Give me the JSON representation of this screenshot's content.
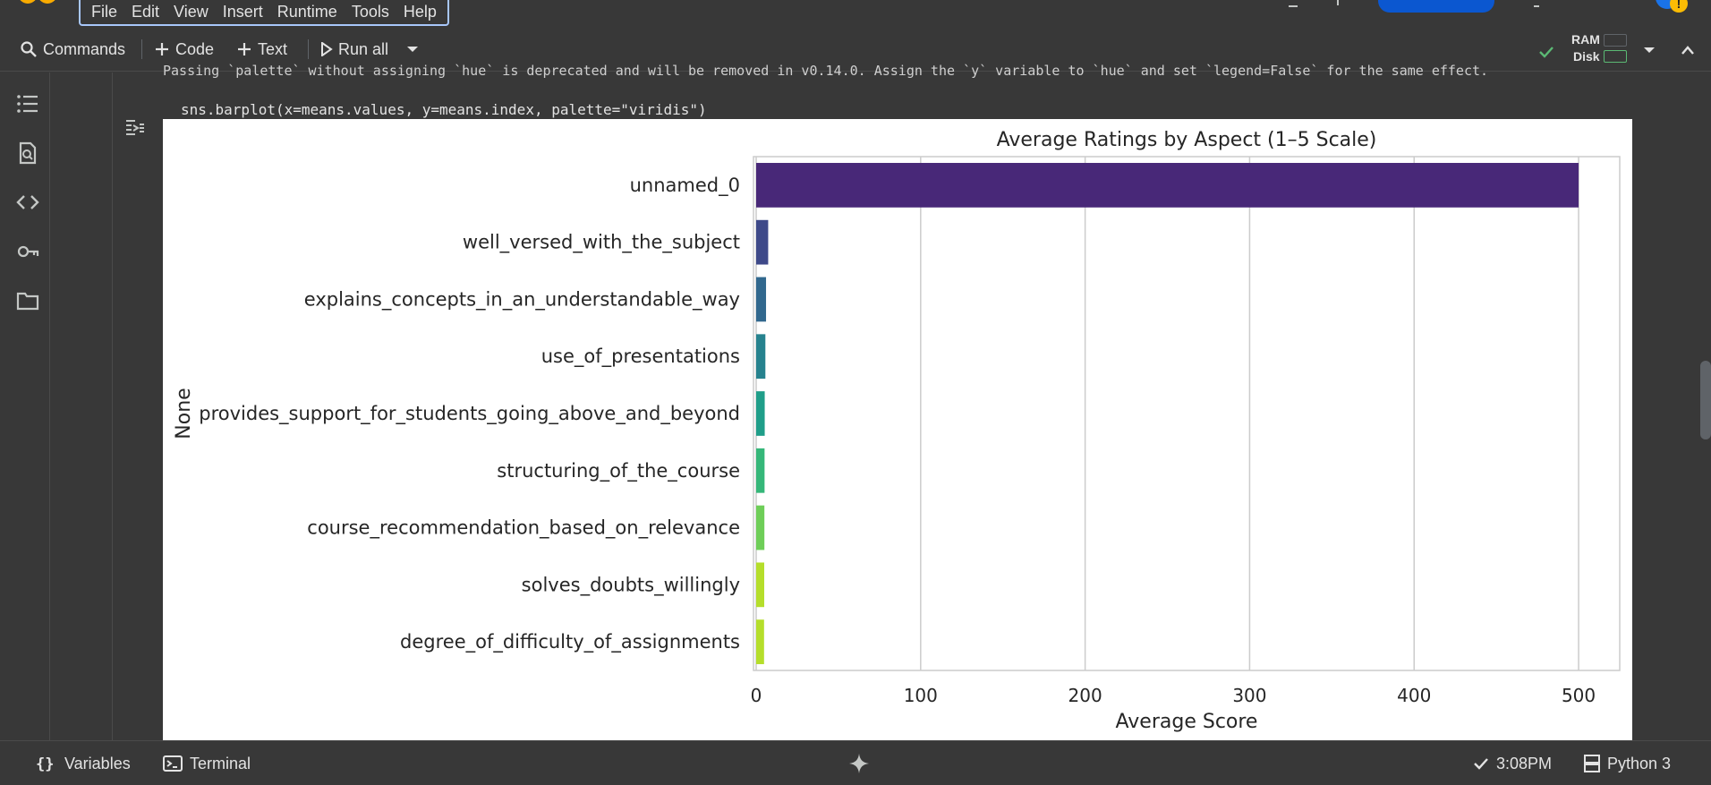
{
  "menu": {
    "items": [
      "File",
      "Edit",
      "View",
      "Insert",
      "Runtime",
      "Tools",
      "Help"
    ]
  },
  "toolbar": {
    "commands_label": "Commands",
    "code_label": "Code",
    "text_label": "Text",
    "run_all_label": "Run all",
    "ram_label": "RAM",
    "disk_label": "Disk"
  },
  "cell": {
    "warning_text": "Passing `palette` without assigning `hue` is deprecated and will be removed in v0.14.0. Assign the `y` variable to `hue` and set `legend=False` for the same effect.",
    "code_text": "sns.barplot(x=means.values, y=means.index, palette=\"viridis\")"
  },
  "chart_data": {
    "type": "bar",
    "orientation": "horizontal",
    "title": "Average Ratings by Aspect (1–5 Scale)",
    "xlabel": "Average Score",
    "ylabel": "None",
    "categories": [
      "unnamed_0",
      "well_versed_with_the_subject",
      "explains_concepts_in_an_understandable_way",
      "use_of_presentations",
      "provides_support_for_students_going_above_and_beyond",
      "structuring_of_the_course",
      "course_recommendation_based_on_relevance",
      "solves_doubts_willingly",
      "degree_of_difficulty_of_assignments"
    ],
    "values": [
      500,
      7.3,
      6.0,
      5.6,
      5.2,
      5.1,
      5.0,
      4.9,
      4.8
    ],
    "xlim": [
      0,
      525
    ],
    "xticks": [
      0,
      100,
      200,
      300,
      400,
      500
    ],
    "grid": "x",
    "colors": [
      "#482878",
      "#3e4989",
      "#31688e",
      "#26828e",
      "#1f9e89",
      "#35b779",
      "#6ece58",
      "#b5de2b",
      "#b5de2b"
    ]
  },
  "status": {
    "variables_label": "Variables",
    "terminal_label": "Terminal",
    "time": "3:08PM",
    "runtime": "Python 3"
  }
}
